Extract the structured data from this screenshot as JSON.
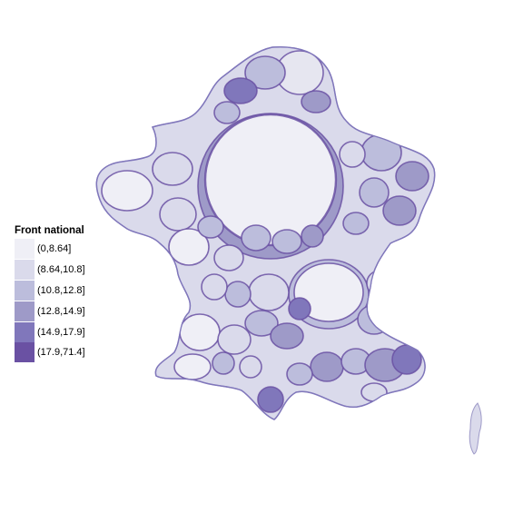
{
  "legend": {
    "title": "Front national",
    "bins": [
      {
        "label": "(0,8.64]",
        "color": "#efeff6"
      },
      {
        "label": "(8.64,10.8]",
        "color": "#dadaeb"
      },
      {
        "label": "(10.8,12.8]",
        "color": "#bcbddc"
      },
      {
        "label": "(12.8,14.9]",
        "color": "#9e9ac8"
      },
      {
        "label": "(14.9,17.9]",
        "color": "#8077bb"
      },
      {
        "label": "(17.9,71.4]",
        "color": "#6a51a3"
      }
    ]
  },
  "colors": {
    "background": "#ffffff",
    "outline": "#6a51a3"
  }
}
